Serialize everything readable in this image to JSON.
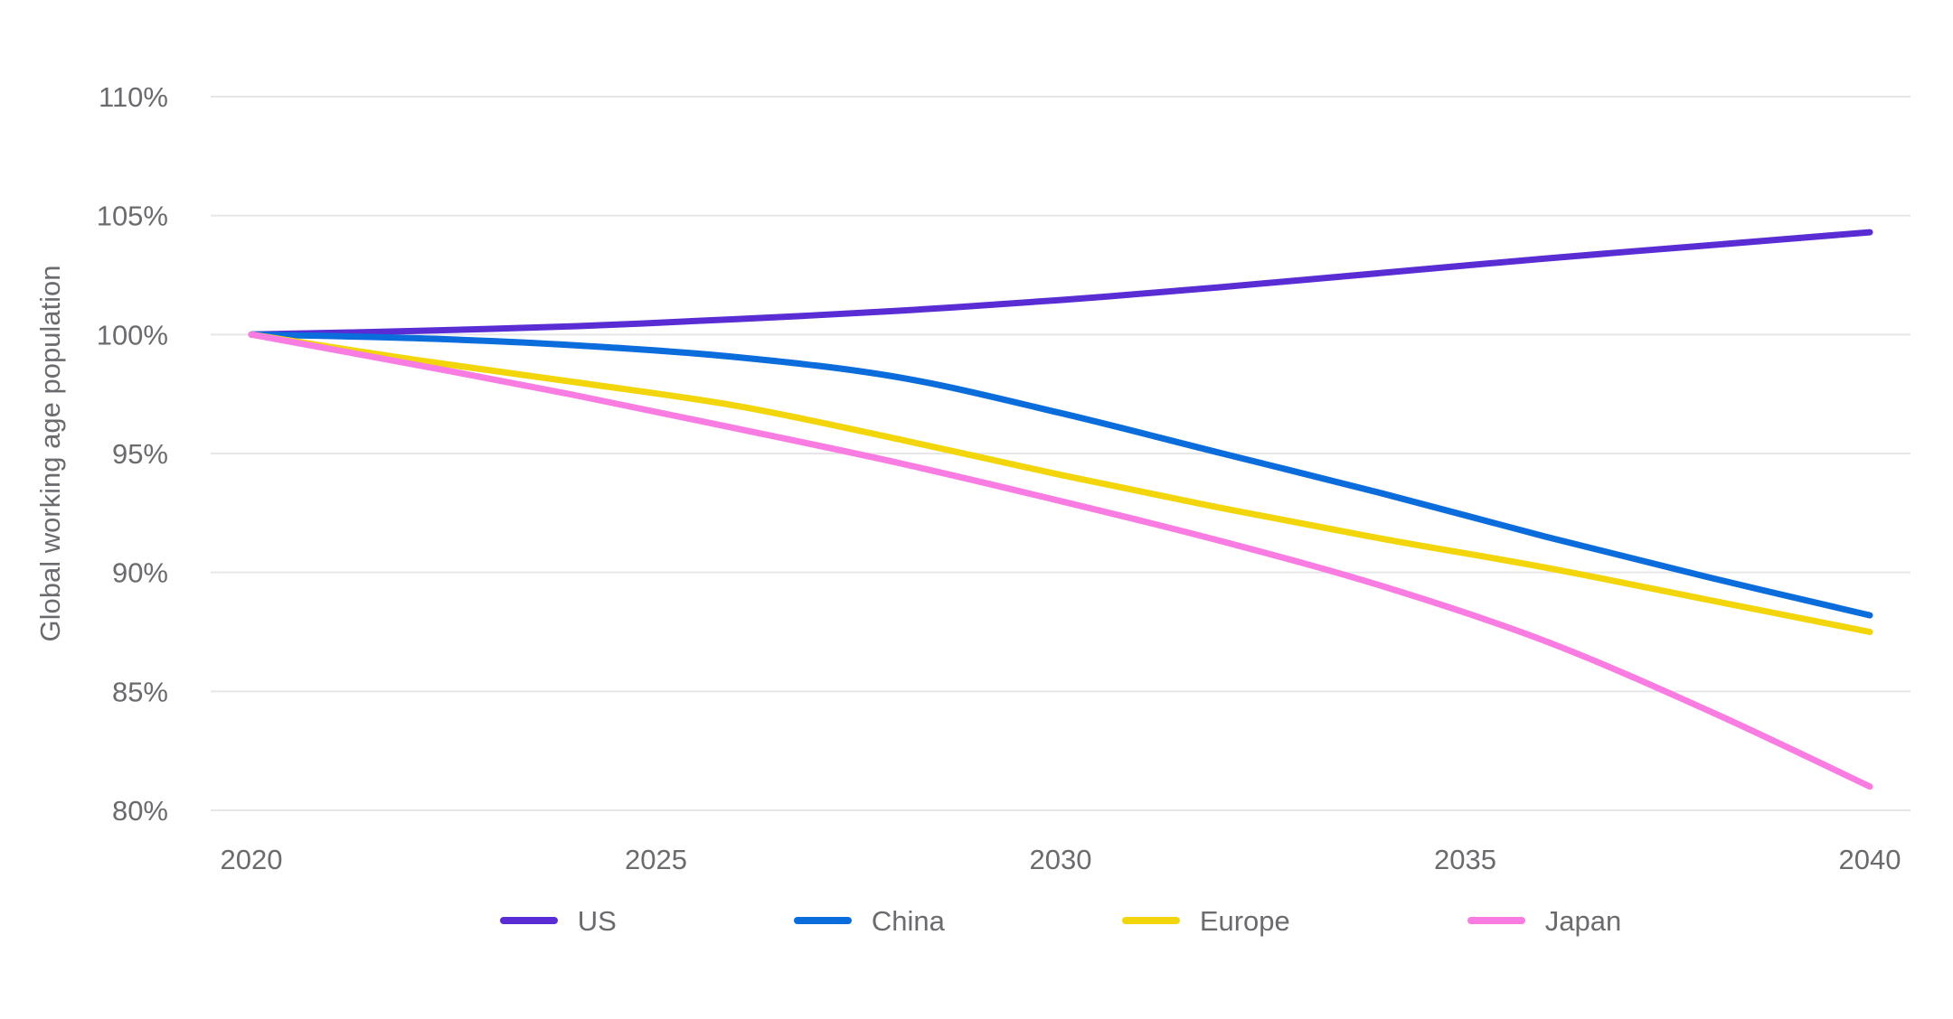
{
  "chart_data": {
    "type": "line",
    "title": "",
    "xlabel": "",
    "ylabel": "Global working age population",
    "x": [
      2020,
      2022,
      2024,
      2026,
      2028,
      2030,
      2032,
      2034,
      2036,
      2038,
      2040
    ],
    "x_tick_labels": [
      "2020",
      "2025",
      "2030",
      "2035",
      "2040"
    ],
    "x_tick_values": [
      2020,
      2025,
      2030,
      2035,
      2040
    ],
    "y_tick_labels": [
      "110%",
      "105%",
      "100%",
      "95%",
      "90%",
      "85%",
      "80%"
    ],
    "y_tick_values": [
      110,
      105,
      100,
      95,
      90,
      85,
      80
    ],
    "xlim": [
      2020,
      2040
    ],
    "ylim": [
      80,
      110
    ],
    "grid": "horizontal",
    "legend_position": "bottom-center",
    "series": [
      {
        "name": "US",
        "color": "#5a2dd4",
        "values": [
          100,
          100.15,
          100.35,
          100.65,
          101.0,
          101.45,
          102.0,
          102.6,
          103.2,
          103.75,
          104.3
        ]
      },
      {
        "name": "China",
        "color": "#0b6cdc",
        "values": [
          100,
          99.85,
          99.55,
          99.05,
          98.2,
          96.7,
          95.0,
          93.3,
          91.5,
          89.8,
          88.2
        ]
      },
      {
        "name": "Europe",
        "color": "#f2d60b",
        "values": [
          100,
          98.95,
          98.0,
          97.0,
          95.6,
          94.1,
          92.7,
          91.4,
          90.2,
          88.85,
          87.5
        ]
      },
      {
        "name": "Japan",
        "color": "#f97ce2",
        "values": [
          100,
          98.75,
          97.45,
          96.05,
          94.6,
          93.0,
          91.3,
          89.4,
          87.1,
          84.2,
          81.0
        ]
      }
    ]
  },
  "colors": {
    "background": "#ffffff",
    "gridline": "#e6e6e8",
    "tick_text": "#6a6a6f"
  }
}
